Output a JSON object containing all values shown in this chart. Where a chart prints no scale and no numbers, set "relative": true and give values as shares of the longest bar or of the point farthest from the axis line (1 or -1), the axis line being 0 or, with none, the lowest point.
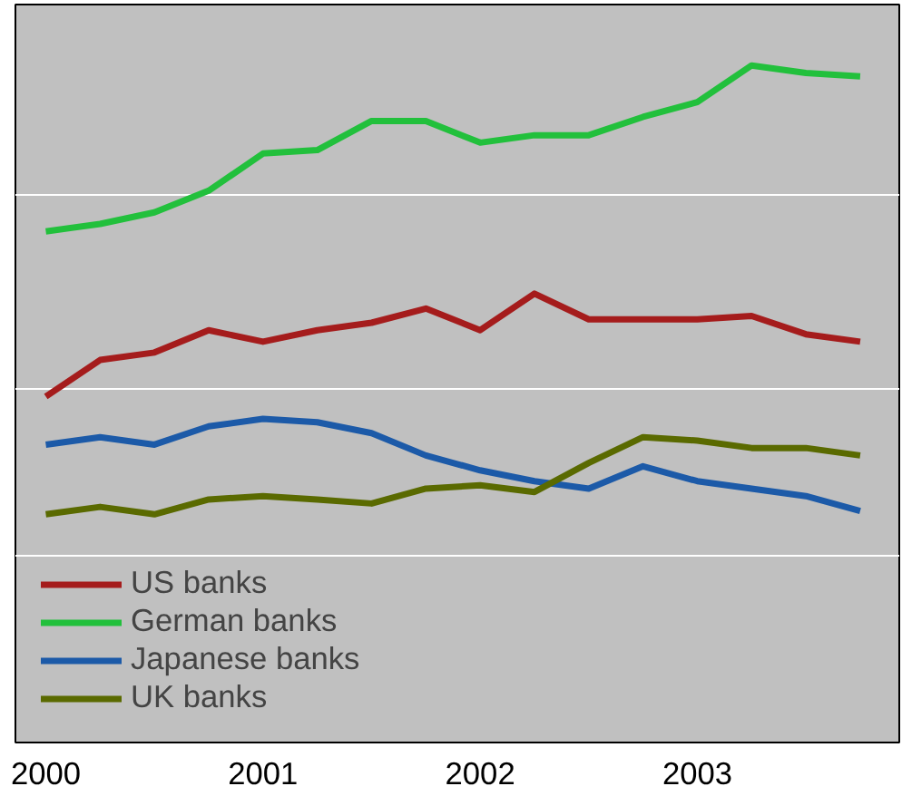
{
  "chart_data": {
    "type": "line",
    "relative": true,
    "x": [
      2000,
      2000.25,
      2000.5,
      2000.75,
      2001,
      2001.25,
      2001.5,
      2001.75,
      2002,
      2002.25,
      2002.5,
      2002.75,
      2003,
      2003.25,
      2003.5,
      2003.75
    ],
    "xlim": [
      1999.86,
      2003.93
    ],
    "xticks": [
      2000,
      2001,
      2002,
      2003
    ],
    "series": [
      {
        "name": "US banks",
        "color": "#a51c1c",
        "values": [
          0.511,
          0.565,
          0.576,
          0.609,
          0.592,
          0.609,
          0.62,
          0.641,
          0.609,
          0.663,
          0.625,
          0.625,
          0.625,
          0.63,
          0.603,
          0.592
        ]
      },
      {
        "name": "German banks",
        "color": "#22c03c",
        "values": [
          0.755,
          0.766,
          0.783,
          0.815,
          0.87,
          0.875,
          0.918,
          0.918,
          0.886,
          0.897,
          0.897,
          0.924,
          0.946,
          1,
          0.989,
          0.984
        ]
      },
      {
        "name": "Japanese banks",
        "color": "#1c5aa8",
        "values": [
          0.44,
          0.451,
          0.44,
          0.467,
          0.478,
          0.473,
          0.457,
          0.424,
          0.402,
          0.386,
          0.375,
          0.408,
          0.386,
          0.375,
          0.364,
          0.342
        ]
      },
      {
        "name": "UK banks",
        "color": "#5a6a00",
        "values": [
          0.337,
          0.348,
          0.337,
          0.359,
          0.364,
          0.359,
          0.353,
          0.375,
          0.38,
          0.37,
          0.413,
          0.451,
          0.446,
          0.435,
          0.435,
          0.424
        ]
      }
    ],
    "grid": "y",
    "legend": "bottom left",
    "line_style": "solid"
  }
}
